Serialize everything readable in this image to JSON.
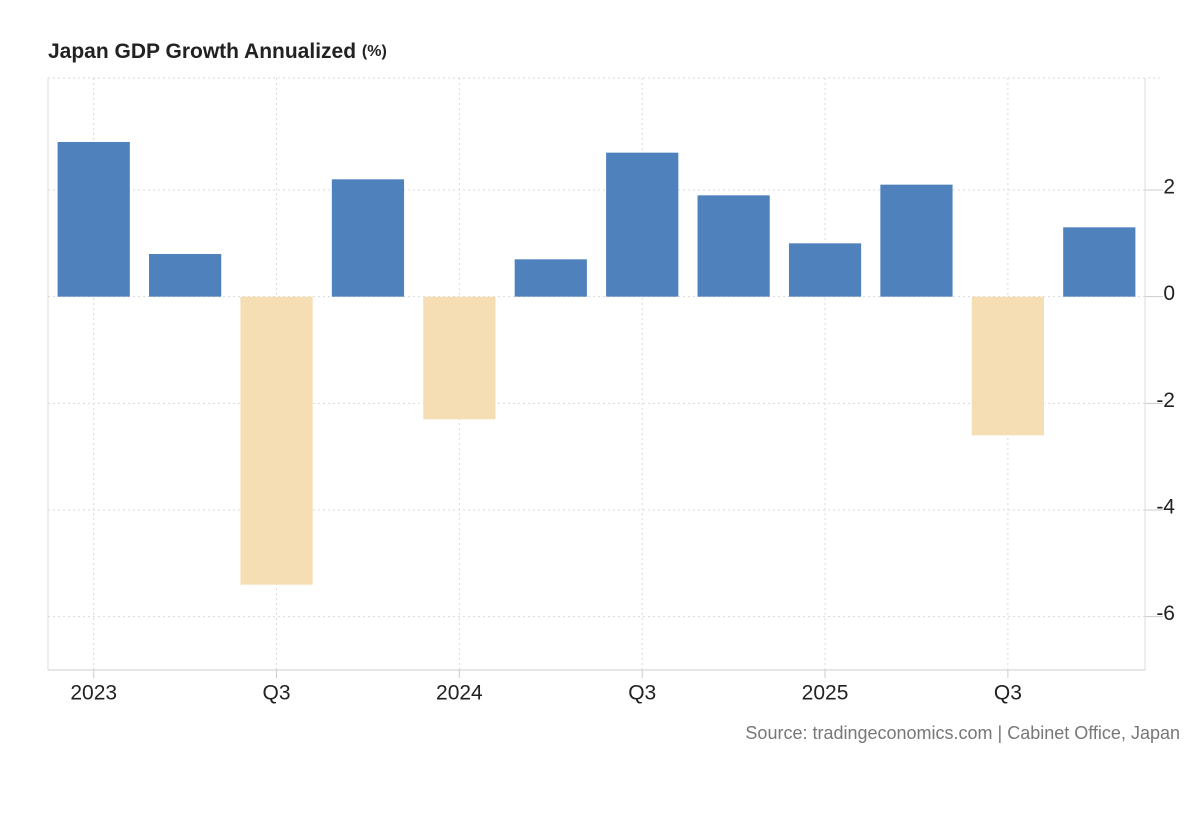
{
  "chart_data": {
    "type": "bar",
    "title": "Japan GDP Growth Annualized",
    "unit": "(%)",
    "source": "Source: tradingeconomics.com | Cabinet Office, Japan",
    "categories": [
      "2023",
      null,
      "Q3",
      null,
      "2024",
      null,
      "Q3",
      null,
      "2025",
      null,
      "Q3",
      null
    ],
    "values": [
      2.9,
      0.8,
      -5.4,
      2.2,
      -2.3,
      0.7,
      2.7,
      1.9,
      1.0,
      2.1,
      -2.6,
      1.3
    ],
    "positive_color": "#4f81bd",
    "negative_color": "#f5deb3",
    "ylim": [
      -7,
      4.1
    ],
    "yticks": [
      -6,
      -4,
      -2,
      0,
      2
    ],
    "grid": true
  }
}
